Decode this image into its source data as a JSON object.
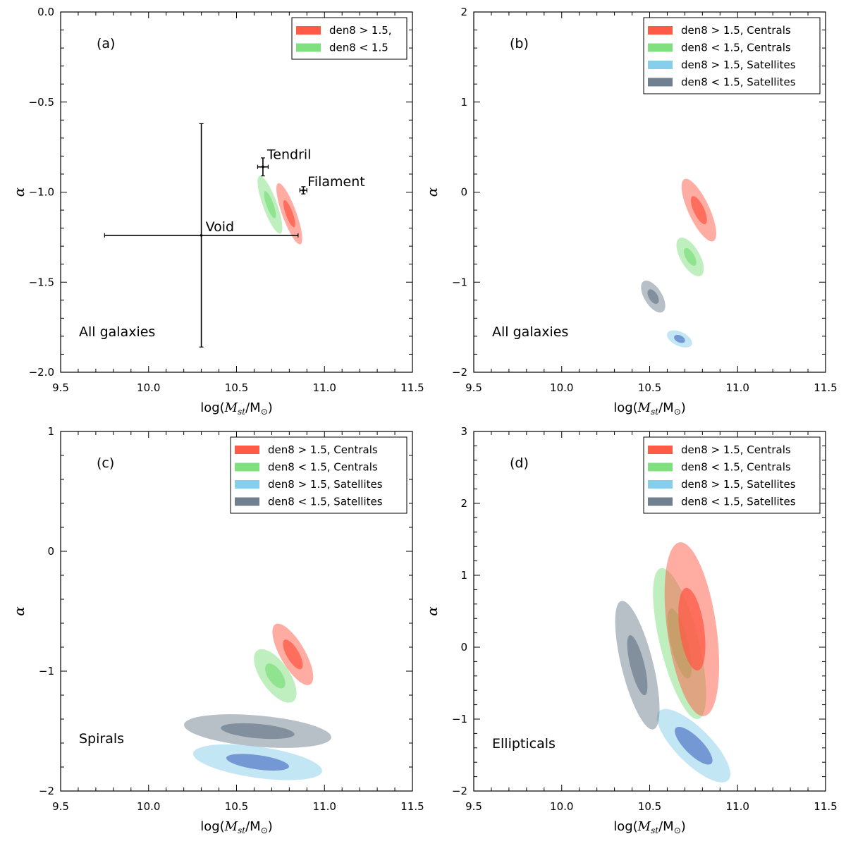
{
  "colors": {
    "den8_gt_centrals": "#ff5a45",
    "den8_lt_centrals": "#80e080",
    "den8_gt_satellites": "#87ceeb",
    "den8_lt_satellites": "#708090",
    "satellites_inner_blue": "#5a7ec8"
  },
  "chart_data": [
    {
      "type": "scatter",
      "panel": "(a)",
      "subset_label": "All galaxies",
      "xlabel_parts": [
        "log(",
        "M",
        "st",
        "/M",
        "⊙",
        ")"
      ],
      "ylabel": "α",
      "xlim": [
        9.5,
        11.5
      ],
      "ylim": [
        -2.0,
        0.0
      ],
      "xticks": [
        9.5,
        10.0,
        10.5,
        11.0,
        11.5
      ],
      "xtick_labels": [
        "9.5",
        "10.0",
        "10.5",
        "11.0",
        "11.5"
      ],
      "yticks": [
        -2.0,
        -1.5,
        -1.0,
        -0.5,
        0.0
      ],
      "ytick_labels": [
        "−2.0",
        "−1.5",
        "−1.0",
        "−0.5",
        "0.0"
      ],
      "legend_position": "top-right",
      "legend": [
        {
          "label": "den8 > 1.5,",
          "color_key": "den8_gt_centrals"
        },
        {
          "label": "den8 < 1.5",
          "color_key": "den8_lt_centrals"
        }
      ],
      "ellipses": [
        {
          "name": "den8 > 1.5",
          "color_key": "den8_gt_centrals",
          "inner_color_key": "den8_gt_centrals",
          "center": [
            10.8,
            -1.12
          ],
          "outer_axes": [
            0.04,
            0.18
          ],
          "inner_axes": [
            0.02,
            0.08
          ],
          "angle": -20
        },
        {
          "name": "den8 < 1.5",
          "color_key": "den8_lt_centrals",
          "inner_color_key": "den8_lt_centrals",
          "center": [
            10.69,
            -1.07
          ],
          "outer_axes": [
            0.04,
            0.17
          ],
          "inner_axes": [
            0.02,
            0.08
          ],
          "angle": -20
        }
      ],
      "points": [
        {
          "label": "Void",
          "x": 10.3,
          "y": -1.24,
          "xerr": [
            0.55,
            0.55
          ],
          "yerr": [
            0.62,
            0.62
          ]
        },
        {
          "label": "Tendril",
          "x": 10.65,
          "y": -0.86,
          "xerr": [
            0.03,
            0.03
          ],
          "yerr": [
            0.05,
            0.05
          ]
        },
        {
          "label": "Filament",
          "x": 10.88,
          "y": -0.99,
          "xerr": [
            0.02,
            0.02
          ],
          "yerr": [
            0.02,
            0.02
          ]
        }
      ]
    },
    {
      "type": "scatter",
      "panel": "(b)",
      "subset_label": "All galaxies",
      "xlabel_parts": [
        "log(",
        "M",
        "st",
        "/M",
        "⊙",
        ")"
      ],
      "ylabel": "α",
      "xlim": [
        9.5,
        11.5
      ],
      "ylim": [
        -2,
        2
      ],
      "xticks": [
        9.5,
        10.0,
        10.5,
        11.0,
        11.5
      ],
      "xtick_labels": [
        "9.5",
        "10.0",
        "10.5",
        "11.0",
        "11.5"
      ],
      "yticks": [
        -2,
        -1,
        0,
        1,
        2
      ],
      "ytick_labels": [
        "−2",
        "−1",
        "0",
        "1",
        "2"
      ],
      "legend_position": "top-right",
      "legend": [
        {
          "label": "den8 > 1.5, Centrals",
          "color_key": "den8_gt_centrals"
        },
        {
          "label": "den8 < 1.5, Centrals",
          "color_key": "den8_lt_centrals"
        },
        {
          "label": "den8 > 1.5, Satellites",
          "color_key": "den8_gt_satellites"
        },
        {
          "label": "den8 < 1.5, Satellites",
          "color_key": "den8_lt_satellites"
        }
      ],
      "ellipses": [
        {
          "name": "den8 > 1.5, Centrals",
          "color_key": "den8_gt_centrals",
          "inner_color_key": "den8_gt_centrals",
          "center": [
            10.78,
            -0.2
          ],
          "outer_axes": [
            0.06,
            0.38
          ],
          "inner_axes": [
            0.03,
            0.17
          ],
          "angle": -25
        },
        {
          "name": "den8 < 1.5, Centrals",
          "color_key": "den8_lt_centrals",
          "inner_color_key": "den8_lt_centrals",
          "center": [
            10.73,
            -0.72
          ],
          "outer_axes": [
            0.055,
            0.24
          ],
          "inner_axes": [
            0.025,
            0.11
          ],
          "angle": -30
        },
        {
          "name": "den8 < 1.5, Satellites",
          "color_key": "den8_lt_satellites",
          "inner_color_key": "den8_lt_satellites",
          "center": [
            10.52,
            -1.16
          ],
          "outer_axes": [
            0.05,
            0.2
          ],
          "inner_axes": [
            0.025,
            0.09
          ],
          "angle": -32
        },
        {
          "name": "den8 > 1.5, Satellites",
          "color_key": "den8_gt_satellites",
          "inner_color_key": "satellites_inner_blue",
          "center": [
            10.67,
            -1.63
          ],
          "outer_axes": [
            0.04,
            0.15
          ],
          "inner_axes": [
            0.02,
            0.065
          ],
          "angle": -65
        }
      ]
    },
    {
      "type": "scatter",
      "panel": "(c)",
      "subset_label": "Spirals",
      "xlabel_parts": [
        "log(",
        "M",
        "st",
        "/M",
        "⊙",
        ")"
      ],
      "ylabel": "α",
      "xlim": [
        9.5,
        11.5
      ],
      "ylim": [
        -2,
        1
      ],
      "xticks": [
        9.5,
        10.0,
        10.5,
        11.0,
        11.5
      ],
      "xtick_labels": [
        "9.5",
        "10.0",
        "10.5",
        "11.0",
        "11.5"
      ],
      "yticks": [
        -2,
        -1,
        0,
        1
      ],
      "ytick_labels": [
        "−2",
        "−1",
        "0",
        "1"
      ],
      "legend_position": "top-right",
      "legend": [
        {
          "label": "den8 > 1.5, Centrals",
          "color_key": "den8_gt_centrals"
        },
        {
          "label": "den8 < 1.5, Centrals",
          "color_key": "den8_lt_centrals"
        },
        {
          "label": "den8 > 1.5, Satellites",
          "color_key": "den8_gt_satellites"
        },
        {
          "label": "den8 < 1.5, Satellites",
          "color_key": "den8_lt_satellites"
        }
      ],
      "ellipses": [
        {
          "name": "den8 > 1.5, Centrals",
          "color_key": "den8_gt_centrals",
          "inner_color_key": "den8_gt_centrals",
          "center": [
            10.82,
            -0.86
          ],
          "outer_axes": [
            0.07,
            0.29
          ],
          "inner_axes": [
            0.035,
            0.14
          ],
          "angle": -30
        },
        {
          "name": "den8 < 1.5, Centrals",
          "color_key": "den8_lt_centrals",
          "inner_color_key": "den8_lt_centrals",
          "center": [
            10.72,
            -1.04
          ],
          "outer_axes": [
            0.08,
            0.26
          ],
          "inner_axes": [
            0.04,
            0.12
          ],
          "angle": -35
        },
        {
          "name": "den8 < 1.5, Satellites",
          "color_key": "den8_lt_satellites",
          "inner_color_key": "den8_lt_satellites",
          "center": [
            10.62,
            -1.5
          ],
          "outer_axes": [
            0.42,
            0.13
          ],
          "inner_axes": [
            0.21,
            0.06
          ],
          "angle": 5
        },
        {
          "name": "den8 > 1.5, Satellites",
          "color_key": "den8_gt_satellites",
          "inner_color_key": "satellites_inner_blue",
          "center": [
            10.62,
            -1.76
          ],
          "outer_axes": [
            0.37,
            0.13
          ],
          "inner_axes": [
            0.18,
            0.06
          ],
          "angle": 8
        }
      ]
    },
    {
      "type": "scatter",
      "panel": "(d)",
      "subset_label": "Ellipticals",
      "xlabel_parts": [
        "log(",
        "M",
        "st",
        "/M",
        "⊙",
        ")"
      ],
      "ylabel": "α",
      "xlim": [
        9.5,
        11.5
      ],
      "ylim": [
        -2,
        3
      ],
      "xticks": [
        9.5,
        10.0,
        10.5,
        11.0,
        11.5
      ],
      "xtick_labels": [
        "9.5",
        "10.0",
        "10.5",
        "11.0",
        "11.5"
      ],
      "yticks": [
        -2,
        -1,
        0,
        1,
        2,
        3
      ],
      "ytick_labels": [
        "−2",
        "−1",
        "0",
        "1",
        "2",
        "3"
      ],
      "legend_position": "top-right",
      "legend": [
        {
          "label": "den8 > 1.5, Centrals",
          "color_key": "den8_gt_centrals"
        },
        {
          "label": "den8 < 1.5, Centrals",
          "color_key": "den8_lt_centrals"
        },
        {
          "label": "den8 > 1.5, Satellites",
          "color_key": "den8_gt_satellites"
        },
        {
          "label": "den8 < 1.5, Satellites",
          "color_key": "den8_lt_satellites"
        }
      ],
      "ellipses": [
        {
          "name": "den8 > 1.5, Satellites",
          "color_key": "den8_gt_satellites",
          "inner_color_key": "satellites_inner_blue",
          "center": [
            10.75,
            -1.37
          ],
          "outer_axes": [
            0.1,
            0.68
          ],
          "inner_axes": [
            0.05,
            0.35
          ],
          "angle": -45
        },
        {
          "name": "den8 < 1.5, Satellites",
          "color_key": "den8_lt_satellites",
          "inner_color_key": "den8_lt_satellites",
          "center": [
            10.43,
            -0.25
          ],
          "outer_axes": [
            0.09,
            0.92
          ],
          "inner_axes": [
            0.04,
            0.43
          ],
          "angle": -14
        },
        {
          "name": "den8 < 1.5, Centrals",
          "color_key": "den8_lt_centrals",
          "inner_color_key": "den8_lt_centrals",
          "center": [
            10.67,
            0.05
          ],
          "outer_axes": [
            0.11,
            1.08
          ],
          "inner_axes": [
            0.05,
            0.5
          ],
          "angle": -14
        },
        {
          "name": "den8 > 1.5, Centrals",
          "color_key": "den8_gt_centrals",
          "inner_color_key": "den8_gt_centrals",
          "center": [
            10.74,
            0.25
          ],
          "outer_axes": [
            0.14,
            1.22
          ],
          "inner_axes": [
            0.07,
            0.58
          ],
          "angle": -8
        }
      ]
    }
  ]
}
